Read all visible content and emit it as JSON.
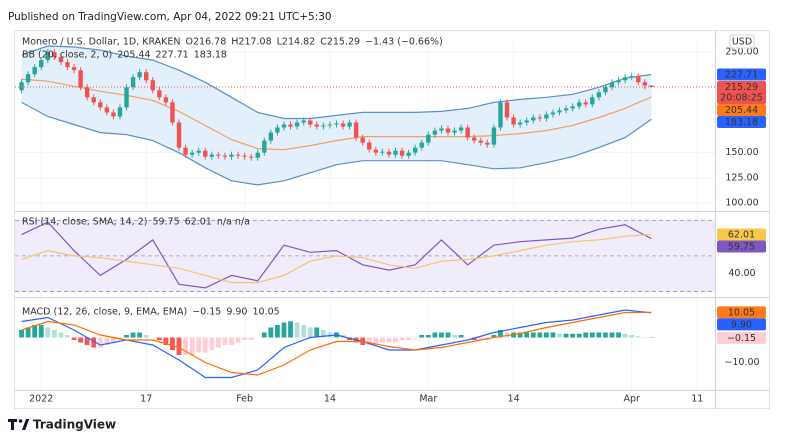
{
  "header": {
    "published": "Published on TradingView.com, Apr 04, 2022 09:21 UTC+5:30"
  },
  "footer": {
    "logo": "TradingView"
  },
  "chart_data": [
    {
      "type": "candlestick",
      "title": "Monero / U.S. Dollar, 1D, KRAKEN",
      "ohlc_labels": [
        "O216.78",
        "H217.08",
        "L214.82",
        "C215.29"
      ],
      "change_label": "−1.43 (−0.66%)",
      "currency": "USD",
      "countdown": "20:08:25",
      "indicator": "BB (20, close, 2, 0)",
      "up_color": "#26a69a",
      "down_color": "#ef5350",
      "band_color": "#e3f0fb",
      "grid": true,
      "xlim": [
        -4,
        102.7
      ],
      "xticks": [
        {
          "value": 0,
          "label": "2022"
        },
        {
          "value": 16,
          "label": "17"
        },
        {
          "value": 31,
          "label": "Feb"
        },
        {
          "value": 44,
          "label": "14"
        },
        {
          "value": 59,
          "label": "Mar"
        },
        {
          "value": 72,
          "label": "14"
        },
        {
          "value": 90,
          "label": "Apr"
        },
        {
          "value": 100,
          "label": "11"
        }
      ],
      "ylim": [
        95,
        262
      ],
      "yticks": [
        {
          "value": 250,
          "label": "250.00"
        },
        {
          "value": 150,
          "label": "150.00"
        },
        {
          "value": 125,
          "label": "125.00"
        },
        {
          "value": 100,
          "label": "100.00"
        }
      ],
      "x": [
        -3,
        -2,
        -1,
        0,
        1,
        2,
        3,
        4,
        5,
        6,
        7,
        8,
        9,
        10,
        11,
        12,
        13,
        14,
        15,
        16,
        17,
        18,
        19,
        20,
        21,
        22,
        23,
        24,
        25,
        26,
        27,
        28,
        29,
        30,
        31,
        32,
        33,
        34,
        35,
        36,
        37,
        38,
        39,
        40,
        41,
        42,
        43,
        44,
        45,
        46,
        47,
        48,
        49,
        50,
        51,
        52,
        53,
        54,
        55,
        56,
        57,
        58,
        59,
        60,
        61,
        62,
        63,
        64,
        65,
        66,
        67,
        68,
        69,
        70,
        71,
        72,
        73,
        74,
        75,
        76,
        77,
        78,
        79,
        80,
        81,
        82,
        83,
        84,
        85,
        86,
        87,
        88,
        89,
        90,
        91,
        92,
        93
      ],
      "ohlc": [
        [
          212,
          223,
          209,
          220
        ],
        [
          220,
          231,
          217,
          228
        ],
        [
          228,
          238,
          225,
          235
        ],
        [
          235,
          245,
          232,
          242
        ],
        [
          242,
          253,
          239,
          250
        ],
        [
          250,
          253,
          242,
          245
        ],
        [
          245,
          248,
          237,
          240
        ],
        [
          240,
          243,
          232,
          235
        ],
        [
          235,
          238,
          229,
          232
        ],
        [
          232,
          235,
          212,
          215
        ],
        [
          215,
          218,
          202,
          205
        ],
        [
          205,
          208,
          197,
          200
        ],
        [
          200,
          203,
          192,
          195
        ],
        [
          195,
          198,
          187,
          190
        ],
        [
          190,
          193,
          183,
          186
        ],
        [
          186,
          198,
          183,
          195
        ],
        [
          195,
          218,
          192,
          215
        ],
        [
          215,
          228,
          212,
          225
        ],
        [
          225,
          233,
          222,
          230
        ],
        [
          230,
          233,
          219,
          222
        ],
        [
          222,
          225,
          209,
          212
        ],
        [
          212,
          215,
          202,
          205
        ],
        [
          205,
          208,
          197,
          200
        ],
        [
          200,
          203,
          177,
          180
        ],
        [
          180,
          183,
          152,
          155
        ],
        [
          155,
          158,
          145,
          148
        ],
        [
          148,
          153,
          145,
          150
        ],
        [
          150,
          155,
          147,
          152
        ],
        [
          152,
          155,
          143,
          146
        ],
        [
          146,
          151,
          143,
          148
        ],
        [
          148,
          151,
          144,
          147
        ],
        [
          147,
          150,
          143,
          146
        ],
        [
          146,
          151,
          143,
          148
        ],
        [
          148,
          151,
          144,
          147
        ],
        [
          147,
          150,
          143,
          146
        ],
        [
          146,
          149,
          142,
          145
        ],
        [
          145,
          153,
          142,
          150
        ],
        [
          150,
          165,
          147,
          162
        ],
        [
          162,
          173,
          159,
          170
        ],
        [
          170,
          178,
          167,
          175
        ],
        [
          175,
          181,
          172,
          178
        ],
        [
          178,
          181,
          173,
          176
        ],
        [
          176,
          183,
          173,
          180
        ],
        [
          180,
          185,
          177,
          182
        ],
        [
          182,
          185,
          175,
          178
        ],
        [
          178,
          181,
          173,
          176
        ],
        [
          176,
          180,
          173,
          177
        ],
        [
          177,
          181,
          174,
          178
        ],
        [
          178,
          182,
          175,
          179
        ],
        [
          179,
          182,
          173,
          176
        ],
        [
          176,
          183,
          173,
          180
        ],
        [
          180,
          183,
          162,
          165
        ],
        [
          165,
          168,
          157,
          160
        ],
        [
          160,
          163,
          150,
          153
        ],
        [
          153,
          156,
          147,
          150
        ],
        [
          150,
          154,
          147,
          151
        ],
        [
          151,
          154,
          145,
          148
        ],
        [
          148,
          155,
          145,
          152
        ],
        [
          152,
          155,
          144,
          147
        ],
        [
          147,
          153,
          144,
          150
        ],
        [
          150,
          158,
          147,
          155
        ],
        [
          155,
          163,
          152,
          160
        ],
        [
          160,
          171,
          157,
          168
        ],
        [
          168,
          175,
          165,
          172
        ],
        [
          172,
          177,
          169,
          174
        ],
        [
          174,
          177,
          167,
          170
        ],
        [
          170,
          175,
          167,
          172
        ],
        [
          172,
          178,
          169,
          175
        ],
        [
          175,
          178,
          162,
          165
        ],
        [
          165,
          168,
          159,
          162
        ],
        [
          162,
          165,
          157,
          160
        ],
        [
          160,
          163,
          155,
          158
        ],
        [
          158,
          178,
          155,
          175
        ],
        [
          175,
          203,
          172,
          200
        ],
        [
          200,
          203,
          182,
          185
        ],
        [
          185,
          188,
          175,
          178
        ],
        [
          178,
          183,
          175,
          180
        ],
        [
          180,
          185,
          177,
          182
        ],
        [
          182,
          188,
          179,
          185
        ],
        [
          185,
          188,
          181,
          184
        ],
        [
          184,
          191,
          181,
          188
        ],
        [
          188,
          193,
          185,
          190
        ],
        [
          190,
          195,
          187,
          192
        ],
        [
          192,
          197,
          189,
          194
        ],
        [
          194,
          199,
          191,
          196
        ],
        [
          196,
          203,
          193,
          200
        ],
        [
          200,
          203,
          195,
          198
        ],
        [
          198,
          208,
          195,
          205
        ],
        [
          205,
          213,
          202,
          210
        ],
        [
          210,
          218,
          207,
          215
        ],
        [
          215,
          223,
          212,
          220
        ],
        [
          220,
          225,
          217,
          222
        ],
        [
          222,
          228,
          219,
          225
        ],
        [
          225,
          229,
          222,
          226
        ],
        [
          226,
          229,
          217,
          220
        ],
        [
          220,
          223,
          213,
          216.78
        ],
        [
          216.78,
          217.08,
          214.82,
          215.29
        ]
      ],
      "series": [
        {
          "color": "#f0a060",
          "tag_color": "#ff7a1a",
          "last_label": "205.44",
          "x": [
            -3,
            1,
            5,
            9,
            13,
            17,
            21,
            25,
            29,
            33,
            37,
            41,
            45,
            49,
            53,
            57,
            61,
            65,
            69,
            73,
            77,
            81,
            85,
            89,
            93
          ],
          "values": [
            223,
            221,
            216,
            211,
            207,
            202,
            191,
            177,
            163,
            154,
            153,
            157,
            162,
            166,
            166,
            166,
            166,
            166,
            167,
            169,
            172,
            177,
            185,
            194,
            205.44
          ]
        },
        {
          "color": "#5b8fc8",
          "tag_color": "#2962ff",
          "last_label": "227.71",
          "x": [
            -3,
            1,
            5,
            9,
            13,
            17,
            21,
            25,
            29,
            33,
            37,
            41,
            45,
            49,
            53,
            57,
            61,
            65,
            69,
            73,
            77,
            81,
            85,
            89,
            93
          ],
          "values": [
            247,
            256,
            255,
            252,
            246,
            242,
            232,
            220,
            205,
            190,
            184,
            184,
            187,
            190,
            190,
            190,
            191,
            194,
            200,
            203,
            205,
            208,
            215,
            224,
            227.71
          ]
        },
        {
          "color": "#5b8fc8",
          "tag_color": "#2962ff",
          "last_label": "183.18",
          "x": [
            -3,
            1,
            5,
            9,
            13,
            17,
            21,
            25,
            29,
            33,
            37,
            41,
            45,
            49,
            53,
            57,
            61,
            65,
            69,
            73,
            77,
            81,
            85,
            89,
            93
          ],
          "values": [
            200,
            186,
            178,
            170,
            168,
            162,
            150,
            135,
            122,
            118,
            122,
            130,
            138,
            142,
            142,
            142,
            142,
            138,
            134,
            135,
            140,
            146,
            155,
            165,
            183.18
          ]
        }
      ]
    },
    {
      "type": "oscillator",
      "indicator": "RSI (14, close, SMA, 14, 2)",
      "na_label": "n/a n/a",
      "band_color": "#f1ecfb",
      "levels": [
        70,
        50,
        30
      ],
      "ylim": [
        28,
        73
      ],
      "yticks": [
        {
          "value": 40,
          "label": "40.00"
        }
      ],
      "series": [
        {
          "color": "#7e57c2",
          "tag_color": "#7e57c2",
          "last_label": "59.75",
          "x": [
            -3,
            1,
            5,
            9,
            13,
            17,
            21,
            25,
            29,
            33,
            37,
            41,
            45,
            49,
            53,
            57,
            61,
            65,
            69,
            73,
            77,
            81,
            85,
            89,
            93
          ],
          "values": [
            62,
            69,
            53,
            39,
            48,
            59,
            34,
            32,
            39,
            36,
            56,
            52,
            53,
            45,
            42,
            45,
            59,
            45,
            56,
            58,
            59,
            60,
            65,
            67.5,
            59.75
          ]
        },
        {
          "color": "#f3c56a",
          "tag_color": "#f7c948",
          "last_label": "62.01",
          "x": [
            -3,
            1,
            5,
            9,
            13,
            17,
            21,
            25,
            29,
            33,
            37,
            41,
            45,
            49,
            53,
            57,
            61,
            65,
            69,
            73,
            77,
            81,
            85,
            89,
            93
          ],
          "values": [
            48,
            53,
            50,
            49,
            47,
            45,
            43,
            39,
            35,
            35,
            39,
            47,
            50,
            49,
            45,
            43,
            47,
            48,
            50,
            53,
            56,
            58,
            59,
            61,
            62.01
          ]
        }
      ]
    },
    {
      "type": "macd",
      "indicator": "MACD (12, 26, close, 9, EMA, EMA)",
      "ylim": [
        -21,
        15
      ],
      "yticks": [
        {
          "value": -10,
          "label": "−10.00"
        }
      ],
      "histogram": {
        "last_label": "−0.15",
        "tag_color": "#ffcdd2",
        "colors": [
          "#26a69a",
          "#b2dfdb",
          "#ffcdd2",
          "#ff5252"
        ],
        "values": [
          3,
          4,
          5,
          5,
          4,
          3,
          2,
          1,
          -1,
          -2,
          -3,
          -4,
          -4,
          -3,
          -2,
          -1,
          1,
          2,
          2,
          1,
          0,
          -1,
          -3,
          -5,
          -7,
          -7,
          -7,
          -6,
          -6,
          -5,
          -4,
          -3,
          -3,
          -2,
          -1,
          -1,
          0,
          2,
          4,
          5,
          6,
          6.5,
          6,
          5,
          4,
          4,
          3,
          2,
          2,
          1,
          -1,
          -2,
          -3,
          -3,
          -3,
          -2,
          -2,
          -2,
          -1,
          -1,
          0,
          1,
          1,
          2,
          2,
          2,
          1,
          1,
          0,
          -1,
          -1,
          -1,
          1,
          3,
          2,
          2,
          2,
          2,
          2,
          2,
          2,
          2,
          1.5,
          1.5,
          1.5,
          1.5,
          2,
          2,
          2,
          2,
          2,
          2,
          1.5,
          1,
          0.5,
          0.2,
          -0.15
        ]
      },
      "series": [
        {
          "color": "#2962ff",
          "tag_color": "#2962ff",
          "last_label": "9.90",
          "x": [
            -3,
            1,
            5,
            9,
            13,
            17,
            21,
            25,
            29,
            33,
            37,
            41,
            45,
            49,
            53,
            57,
            61,
            65,
            69,
            73,
            77,
            81,
            85,
            89,
            93
          ],
          "values": [
            6.4,
            8,
            3,
            -3,
            -1,
            -3,
            -9,
            -16,
            -16,
            -13,
            -4,
            0,
            1,
            -1.6,
            -5,
            -5,
            -3,
            -1,
            2,
            4,
            6,
            7,
            9,
            11,
            9.9
          ]
        },
        {
          "color": "#ff6d00",
          "tag_color": "#ff7a1a",
          "last_label": "10.05",
          "x": [
            -3,
            1,
            5,
            9,
            13,
            17,
            21,
            25,
            29,
            33,
            37,
            41,
            45,
            49,
            53,
            57,
            61,
            65,
            69,
            73,
            77,
            81,
            85,
            89,
            93
          ],
          "values": [
            3,
            6.4,
            5,
            1,
            -1,
            -1,
            -4,
            -10,
            -14,
            -15,
            -11,
            -5,
            -1.6,
            -1.6,
            -3.6,
            -5,
            -4,
            -2,
            0,
            1.6,
            4,
            6,
            8,
            10,
            10.05
          ]
        }
      ]
    }
  ]
}
